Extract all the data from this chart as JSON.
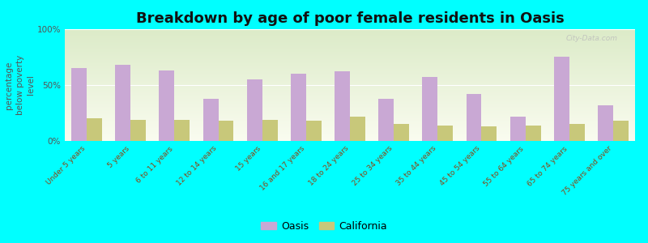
{
  "title": "Breakdown by age of poor female residents in Oasis",
  "ylabel": "percentage\nbelow poverty\nlevel",
  "categories": [
    "Under 5 years",
    "5 years",
    "6 to 11 years",
    "12 to 14 years",
    "15 years",
    "16 and 17 years",
    "18 to 24 years",
    "25 to 34 years",
    "35 to 44 years",
    "45 to 54 years",
    "55 to 64 years",
    "65 to 74 years",
    "75 years and over"
  ],
  "oasis_values": [
    65,
    68,
    63,
    38,
    55,
    60,
    62,
    38,
    57,
    42,
    22,
    75,
    32
  ],
  "california_values": [
    20,
    19,
    19,
    18,
    19,
    18,
    22,
    15,
    14,
    13,
    14,
    15,
    18
  ],
  "oasis_color": "#c9a8d4",
  "california_color": "#c8c87a",
  "background_color": "#00ffff",
  "bar_width": 0.35,
  "ylim": [
    0,
    100
  ],
  "title_fontsize": 13,
  "axis_label_fontsize": 7.5,
  "tick_fontsize": 6.5,
  "legend_labels": [
    "Oasis",
    "California"
  ],
  "watermark": "City-Data.com"
}
